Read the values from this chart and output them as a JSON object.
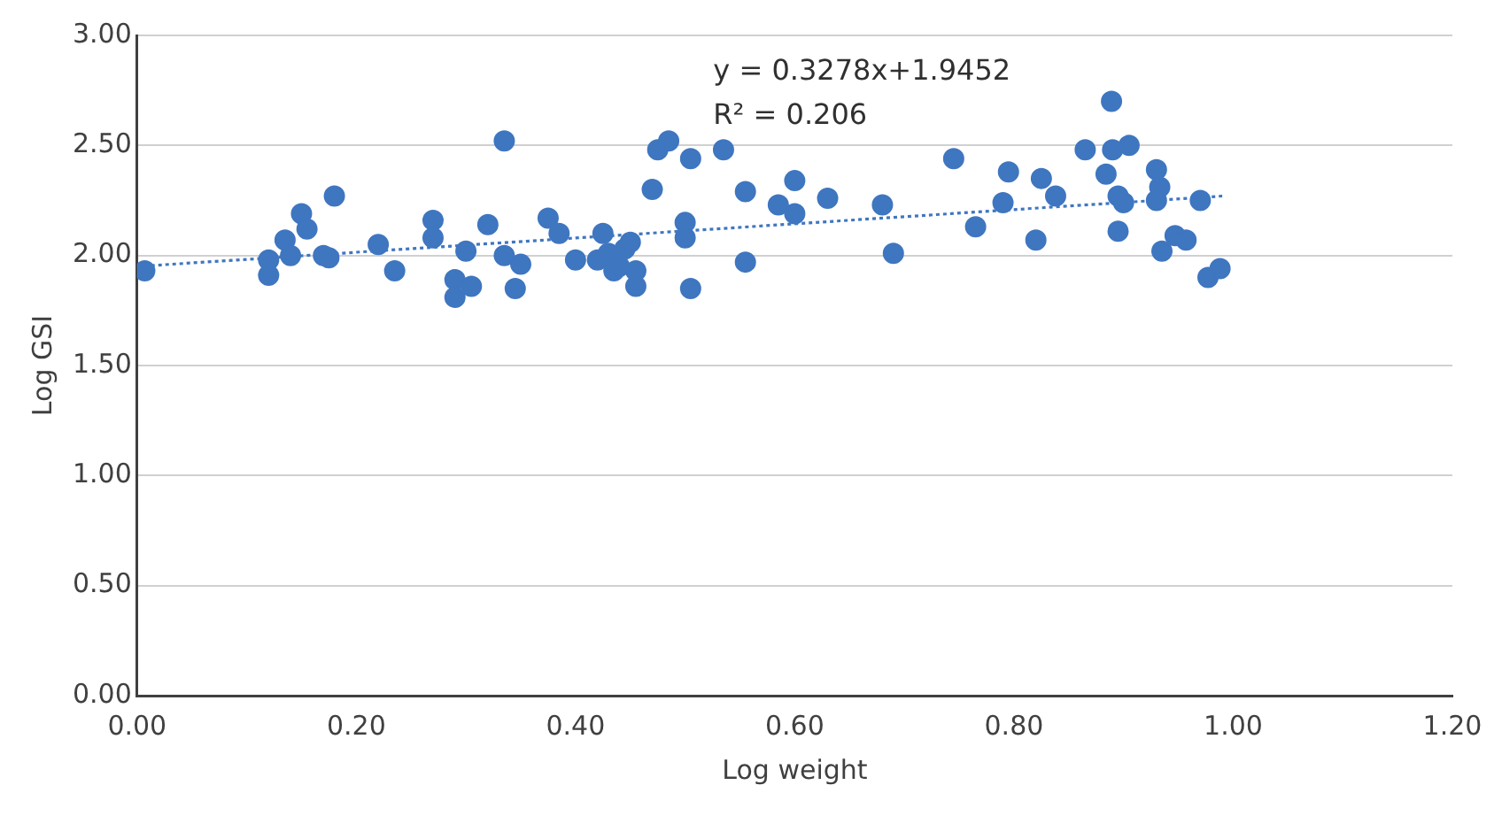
{
  "chart_data": {
    "type": "scatter",
    "xlabel": "Log weight",
    "ylabel": "Log GSI",
    "annotations": [
      "y = 0.3278x+1.9452",
      "R² = 0.206"
    ],
    "xlim": [
      0,
      1.2
    ],
    "ylim": [
      0,
      3
    ],
    "xticks": [
      {
        "value": 0,
        "label": "0.00"
      },
      {
        "value": 0.2,
        "label": "0.20"
      },
      {
        "value": 0.4,
        "label": "0.40"
      },
      {
        "value": 0.6,
        "label": "0.60"
      },
      {
        "value": 0.8,
        "label": "0.80"
      },
      {
        "value": 1,
        "label": "1.00"
      },
      {
        "value": 1.2,
        "label": "1.20"
      }
    ],
    "yticks": [
      {
        "value": 0,
        "label": "0.00"
      },
      {
        "value": 0.5,
        "label": "0.50"
      },
      {
        "value": 1,
        "label": "1.00"
      },
      {
        "value": 1.5,
        "label": "1.50"
      },
      {
        "value": 2,
        "label": "2.00"
      },
      {
        "value": 2.5,
        "label": "2.50"
      },
      {
        "value": 3,
        "label": "3.00"
      }
    ],
    "grid": "y",
    "legend": false,
    "series": [
      {
        "color": "#3f76c0",
        "marker": "circle",
        "x": [
          0.007,
          0.12,
          0.12,
          0.135,
          0.14,
          0.15,
          0.155,
          0.17,
          0.175,
          0.18,
          0.22,
          0.235,
          0.27,
          0.27,
          0.29,
          0.29,
          0.3,
          0.305,
          0.32,
          0.335,
          0.335,
          0.345,
          0.35,
          0.375,
          0.385,
          0.4,
          0.42,
          0.425,
          0.43,
          0.435,
          0.44,
          0.445,
          0.45,
          0.455,
          0.455,
          0.47,
          0.475,
          0.485,
          0.505,
          0.5,
          0.5,
          0.505,
          0.535,
          0.555,
          0.555,
          0.585,
          0.6,
          0.6,
          0.63,
          0.68,
          0.69,
          0.745,
          0.765,
          0.795,
          0.79,
          0.82,
          0.825,
          0.838,
          0.865,
          0.884,
          0.889,
          0.89,
          0.895,
          0.895,
          0.9,
          0.905,
          0.93,
          0.933,
          0.93,
          0.935,
          0.947,
          0.957,
          0.97,
          0.977,
          0.988
        ],
        "values": [
          1.93,
          1.98,
          1.91,
          2.07,
          2.0,
          2.19,
          2.12,
          2.0,
          1.99,
          2.27,
          2.05,
          1.93,
          2.16,
          2.08,
          1.89,
          1.81,
          2.02,
          1.86,
          2.14,
          2.52,
          2.0,
          1.85,
          1.96,
          2.17,
          2.1,
          1.98,
          1.98,
          2.1,
          2.01,
          1.93,
          1.95,
          2.03,
          2.06,
          1.86,
          1.93,
          2.3,
          2.48,
          2.52,
          2.44,
          2.08,
          2.15,
          1.85,
          2.48,
          2.29,
          1.97,
          2.23,
          2.34,
          2.19,
          2.26,
          2.23,
          2.01,
          2.44,
          2.13,
          2.38,
          2.24,
          2.07,
          2.35,
          2.27,
          2.48,
          2.37,
          2.7,
          2.48,
          2.27,
          2.11,
          2.24,
          2.5,
          2.39,
          2.31,
          2.25,
          2.02,
          2.09,
          2.07,
          2.25,
          1.9,
          1.94
        ]
      },
      {
        "type": "line",
        "color": "#3f76c0",
        "marker": "none",
        "line_style": "dotted",
        "x": [
          0,
          0.99
        ],
        "values": [
          1.95,
          2.27
        ]
      }
    ]
  }
}
